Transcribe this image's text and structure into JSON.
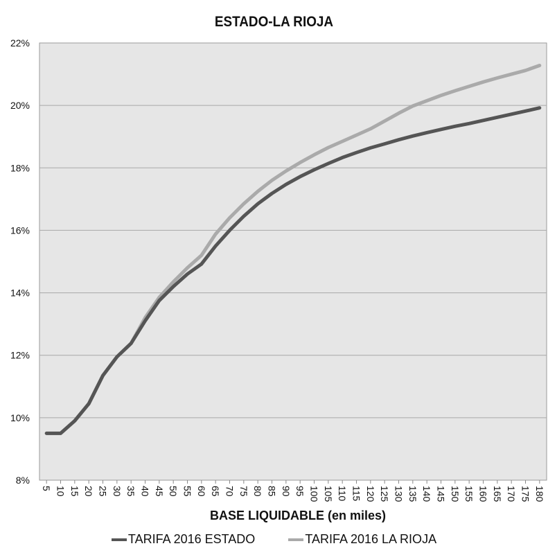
{
  "chart_data": {
    "type": "line",
    "title": "ESTADO-LA RIOJA",
    "xlabel": "BASE LIQUIDABLE (en miles)",
    "ylabel": "",
    "categories": [
      "5",
      "10",
      "15",
      "20",
      "25",
      "30",
      "35",
      "40",
      "45",
      "50",
      "55",
      "60",
      "65",
      "70",
      "75",
      "80",
      "85",
      "90",
      "95",
      "100",
      "105",
      "110",
      "115",
      "120",
      "125",
      "130",
      "135",
      "140",
      "145",
      "150",
      "155",
      "160",
      "165",
      "170",
      "175",
      "180"
    ],
    "yticks": [
      "8%",
      "10%",
      "12%",
      "14%",
      "16%",
      "18%",
      "20%",
      "22%"
    ],
    "ylim": [
      8,
      22
    ],
    "grid": true,
    "legend_position": "bottom",
    "series": [
      {
        "name": "TARIFA 2016 ESTADO",
        "color": "#555555",
        "values": [
          9.5,
          9.5,
          9.9,
          10.45,
          11.35,
          11.95,
          12.38,
          13.1,
          13.75,
          14.2,
          14.6,
          14.92,
          15.5,
          16.0,
          16.45,
          16.85,
          17.18,
          17.47,
          17.72,
          17.94,
          18.14,
          18.33,
          18.49,
          18.64,
          18.77,
          18.9,
          19.02,
          19.13,
          19.23,
          19.33,
          19.42,
          19.52,
          19.62,
          19.72,
          19.82,
          19.92
        ]
      },
      {
        "name": "TARIFA 2016 LA RIOJA",
        "color": "#aaaaaa",
        "values": [
          9.5,
          9.5,
          9.9,
          10.45,
          11.35,
          11.95,
          12.38,
          13.2,
          13.85,
          14.35,
          14.8,
          15.2,
          15.88,
          16.4,
          16.85,
          17.25,
          17.6,
          17.9,
          18.17,
          18.42,
          18.65,
          18.85,
          19.05,
          19.25,
          19.5,
          19.75,
          19.98,
          20.15,
          20.32,
          20.47,
          20.61,
          20.75,
          20.88,
          21.0,
          21.12,
          21.28
        ]
      }
    ]
  }
}
